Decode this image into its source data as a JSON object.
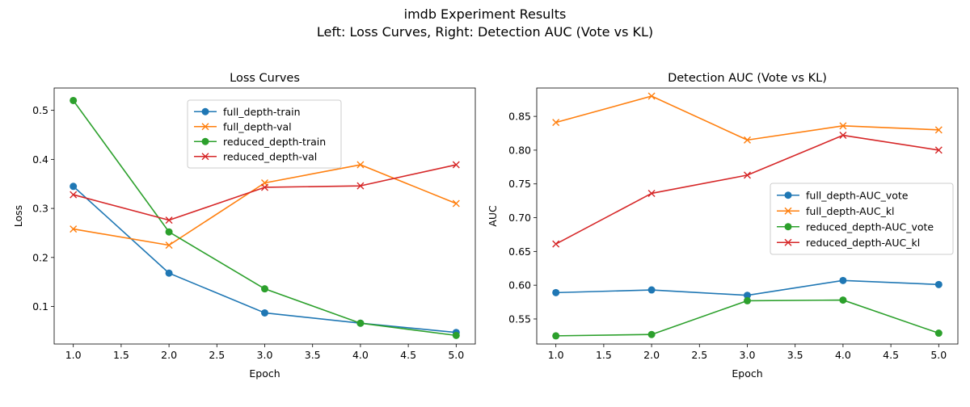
{
  "figure": {
    "suptitle_line1": "imdb Experiment Results",
    "suptitle_line2": "Left: Loss Curves, Right: Detection AUC (Vote vs KL)"
  },
  "colors": {
    "blue": "#1f77b4",
    "orange": "#ff7f0e",
    "green": "#2ca02c",
    "red": "#d62728"
  },
  "chart_data": [
    {
      "type": "line",
      "title": "Loss Curves",
      "xlabel": "Epoch",
      "ylabel": "Loss",
      "xlim": [
        0.8,
        5.2
      ],
      "ylim": [
        0.0235,
        0.5455
      ],
      "xticks": [
        1.0,
        1.5,
        2.0,
        2.5,
        3.0,
        3.5,
        4.0,
        4.5,
        5.0
      ],
      "xtick_labels": [
        "1.0",
        "1.5",
        "2.0",
        "2.5",
        "3.0",
        "3.5",
        "4.0",
        "4.5",
        "5.0"
      ],
      "yticks": [
        0.1,
        0.2,
        0.3,
        0.4,
        0.5
      ],
      "ytick_labels": [
        "0.1",
        "0.2",
        "0.3",
        "0.4",
        "0.5"
      ],
      "legend_position": "upper-center",
      "grid": false,
      "x": [
        1,
        2,
        3,
        4,
        5
      ],
      "series": [
        {
          "name": "full_depth-train",
          "color": "#1f77b4",
          "marker": "circle",
          "values": [
            0.345,
            0.168,
            0.087,
            0.066,
            0.047
          ]
        },
        {
          "name": "full_depth-val",
          "color": "#ff7f0e",
          "marker": "x",
          "values": [
            0.258,
            0.225,
            0.352,
            0.389,
            0.31
          ]
        },
        {
          "name": "reduced_depth-train",
          "color": "#2ca02c",
          "marker": "circle",
          "values": [
            0.52,
            0.252,
            0.136,
            0.066,
            0.041
          ]
        },
        {
          "name": "reduced_depth-val",
          "color": "#d62728",
          "marker": "x",
          "values": [
            0.328,
            0.276,
            0.343,
            0.346,
            0.389
          ]
        }
      ]
    },
    {
      "type": "line",
      "title": "Detection AUC (Vote vs KL)",
      "xlabel": "Epoch",
      "ylabel": "AUC",
      "xlim": [
        0.8,
        5.2
      ],
      "ylim": [
        0.5129,
        0.892
      ],
      "xticks": [
        1.0,
        1.5,
        2.0,
        2.5,
        3.0,
        3.5,
        4.0,
        4.5,
        5.0
      ],
      "xtick_labels": [
        "1.0",
        "1.5",
        "2.0",
        "2.5",
        "3.0",
        "3.5",
        "4.0",
        "4.5",
        "5.0"
      ],
      "yticks": [
        0.55,
        0.6,
        0.65,
        0.7,
        0.75,
        0.8,
        0.85
      ],
      "ytick_labels": [
        "0.55",
        "0.60",
        "0.65",
        "0.70",
        "0.75",
        "0.80",
        "0.85"
      ],
      "legend_position": "center-right",
      "grid": false,
      "x": [
        1,
        2,
        3,
        4,
        5
      ],
      "series": [
        {
          "name": "full_depth-AUC_vote",
          "color": "#1f77b4",
          "marker": "circle",
          "values": [
            0.589,
            0.593,
            0.585,
            0.607,
            0.601
          ]
        },
        {
          "name": "full_depth-AUC_kl",
          "color": "#ff7f0e",
          "marker": "x",
          "values": [
            0.841,
            0.88,
            0.815,
            0.836,
            0.83
          ]
        },
        {
          "name": "reduced_depth-AUC_vote",
          "color": "#2ca02c",
          "marker": "circle",
          "values": [
            0.525,
            0.527,
            0.577,
            0.578,
            0.529
          ]
        },
        {
          "name": "reduced_depth-AUC_kl",
          "color": "#d62728",
          "marker": "x",
          "values": [
            0.661,
            0.736,
            0.763,
            0.822,
            0.8
          ]
        }
      ]
    }
  ]
}
